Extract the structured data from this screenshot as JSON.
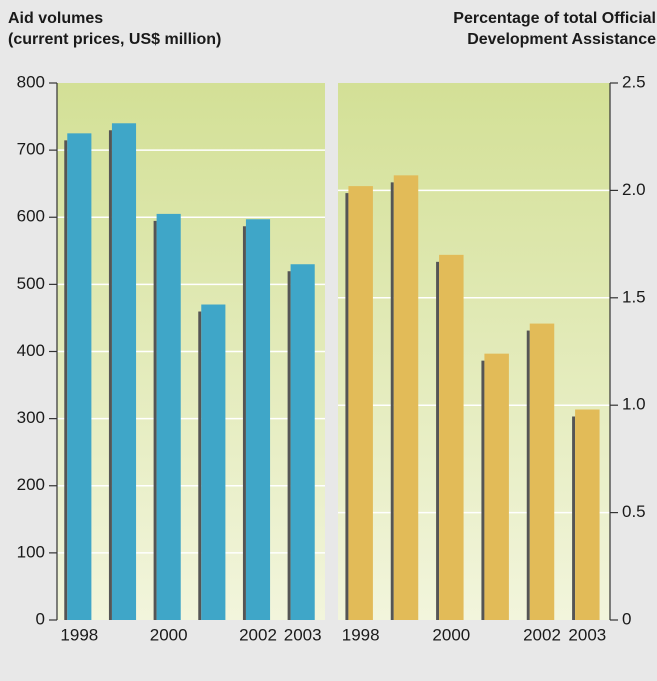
{
  "chart_data": [
    {
      "type": "bar",
      "title_lines": [
        "Aid volumes",
        "(current prices, US$ million)"
      ],
      "categories": [
        "1998",
        null,
        "2000",
        null,
        "2002",
        "2003"
      ],
      "values": [
        725,
        740,
        605,
        470,
        597,
        530
      ],
      "color": "#3fa6c8",
      "ylim": [
        0,
        800
      ],
      "yticks": [
        0,
        100,
        200,
        300,
        400,
        500,
        600,
        700,
        800
      ],
      "grid": true,
      "axis_side": "left"
    },
    {
      "type": "bar",
      "title_lines": [
        "Percentage of total Official",
        "Development Assistance"
      ],
      "categories": [
        "1998",
        null,
        "2000",
        null,
        "2002",
        "2003"
      ],
      "values": [
        2.02,
        2.07,
        1.7,
        1.24,
        1.38,
        0.98
      ],
      "color": "#e2bb58",
      "ylim": [
        0,
        2.5
      ],
      "yticks": [
        0,
        {
          "value": 0.5,
          "label": "0.5"
        },
        {
          "value": 1,
          "label": "1.0"
        },
        {
          "value": 1.5,
          "label": "1.5"
        },
        {
          "value": 2,
          "label": "2.0"
        },
        2.5
      ],
      "grid": true,
      "axis_side": "right"
    }
  ]
}
